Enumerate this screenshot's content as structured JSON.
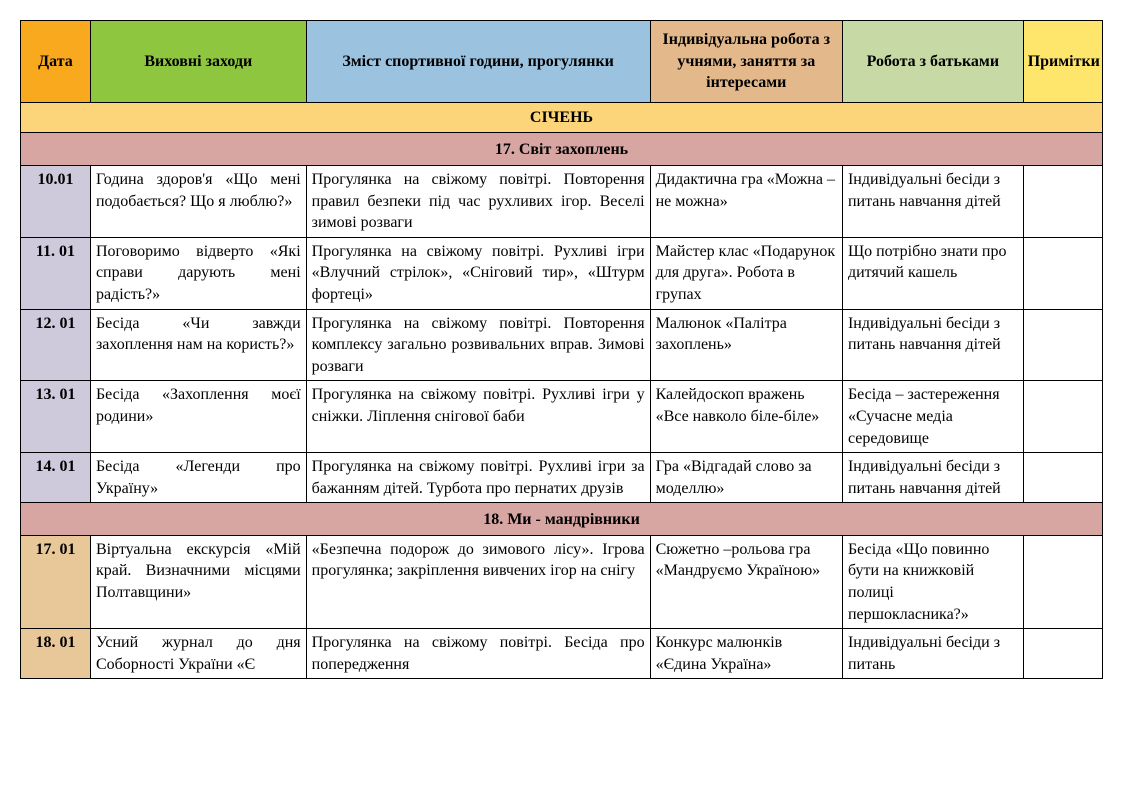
{
  "colors": {
    "header_date": "#f8a91e",
    "header_activities": "#8fc640",
    "header_sport": "#9bc3e0",
    "header_individual": "#e3b88b",
    "header_parents": "#c7d9a4",
    "header_notes": "#fde66b",
    "month_bg": "#fcd57a",
    "section_bg": "#d8a6a2",
    "date_bg": "#cec9db",
    "date_bg2": "#e8c798"
  },
  "headers": {
    "date": "Дата",
    "activities": "Виховні заходи",
    "sport": "Зміст спортивної години, прогулянки",
    "individual": "Індивідуальна робота  з учнями, заняття за інтересами",
    "parents": "Робота з батьками",
    "notes": "Примітки"
  },
  "month": "СІЧЕНЬ",
  "sections": [
    {
      "title": "17. Світ захоплень",
      "rows": [
        {
          "date": "10.01",
          "activities": "Година здоров'я «Що мені подобається? Що я люблю?»",
          "sport": "Прогулянка на свіжому повітрі. Повторення правил безпеки під час рухливих ігор. Веселі зимові розваги",
          "individual": "Дидактична гра «Можна – не можна»",
          "parents": "Індивідуальні бесіди з питань навчання дітей",
          "notes": ""
        },
        {
          "date": "11. 01",
          "activities": "Поговоримо відверто «Які справи дарують мені радість?»",
          "sport": "Прогулянка на свіжому повітрі. Рухливі ігри «Влучний стрілок», «Сніговий тир», «Штурм фортеці»",
          "individual": "Майстер клас «Подарунок для друга». Робота в групах",
          "parents": "Що потрібно знати про дитячий кашель",
          "notes": ""
        },
        {
          "date": "12. 01",
          "activities": "Бесіда «Чи завжди захоплення нам на користь?»",
          "sport": "Прогулянка на свіжому повітрі. Повторення комплексу загально розвивальних вправ. Зимові розваги",
          "individual": "Малюнок «Палітра захоплень»",
          "parents": "Індивідуальні бесіди з питань навчання дітей",
          "notes": ""
        },
        {
          "date": "13. 01",
          "activities": "Бесіда «Захоплення моєї родини»",
          "sport": "Прогулянка на свіжому повітрі. Рухливі ігри у сніжки. Ліплення снігової баби",
          "individual": "Калейдоскоп вражень «Все навколо біле-біле»",
          "parents": "Бесіда – застереження «Сучасне медіа середовище",
          "notes": ""
        },
        {
          "date": "14. 01",
          "activities": "Бесіда «Легенди про Україну»",
          "sport": "Прогулянка на свіжому повітрі. Рухливі ігри за бажанням дітей. Турбота про пернатих друзів",
          "individual": "Гра «Відгадай слово за моделлю»",
          "parents": "Індивідуальні бесіди з питань навчання дітей",
          "notes": ""
        }
      ]
    },
    {
      "title": "18. Ми - мандрівники",
      "rows": [
        {
          "date": "17. 01",
          "activities": "Віртуальна екскурсія «Мій край. Визначними місцями Полтавщини»",
          "sport": "«Безпечна подорож до зимового лісу». Ігрова прогулянка; закріплення вивчених ігор на снігу",
          "individual": "Сюжетно –рольова гра «Мандруємо Україною»",
          "parents": "Бесіда «Що повинно бути на книжковій полиці першокласника?»",
          "notes": ""
        },
        {
          "date": "18. 01",
          "activities": "Усний журнал до дня Соборності України «Є",
          "sport": "Прогулянка на свіжому повітрі. Бесіда про попередження",
          "individual": "Конкурс малюнків «Єдина Україна»",
          "parents": "Індивідуальні бесіди з питань",
          "notes": ""
        }
      ]
    }
  ]
}
